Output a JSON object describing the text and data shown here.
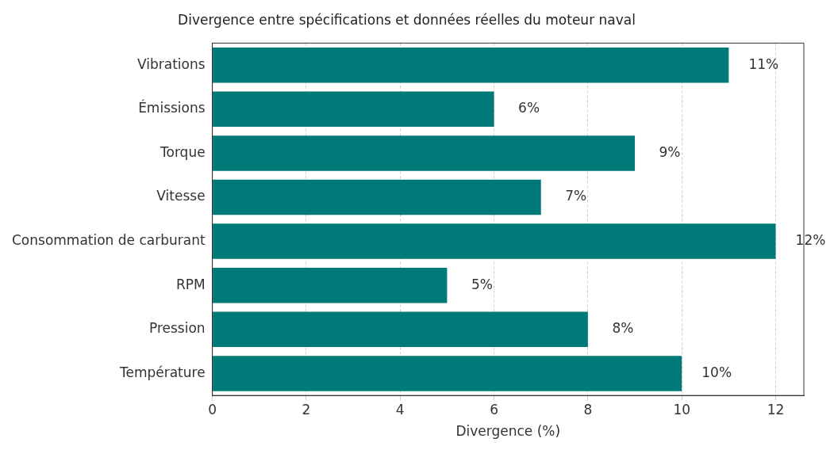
{
  "chart_data": {
    "type": "bar",
    "orientation": "horizontal",
    "title": "Divergence entre spécifications et données réelles du moteur naval",
    "xlabel": "Divergence (%)",
    "categories": [
      "Vibrations",
      "Émissions",
      "Torque",
      "Vitesse",
      "Consommation de carburant",
      "RPM",
      "Pression",
      "Température"
    ],
    "values": [
      11,
      6,
      9,
      7,
      12,
      5,
      8,
      10
    ],
    "value_labels": [
      "11%",
      "6%",
      "9%",
      "7%",
      "12%",
      "5%",
      "8%",
      "10%"
    ],
    "color": "#007a78",
    "xlim": [
      0,
      12.6
    ],
    "xticks": [
      0,
      2,
      4,
      6,
      8,
      10,
      12
    ],
    "grid": "x",
    "legend": false
  }
}
